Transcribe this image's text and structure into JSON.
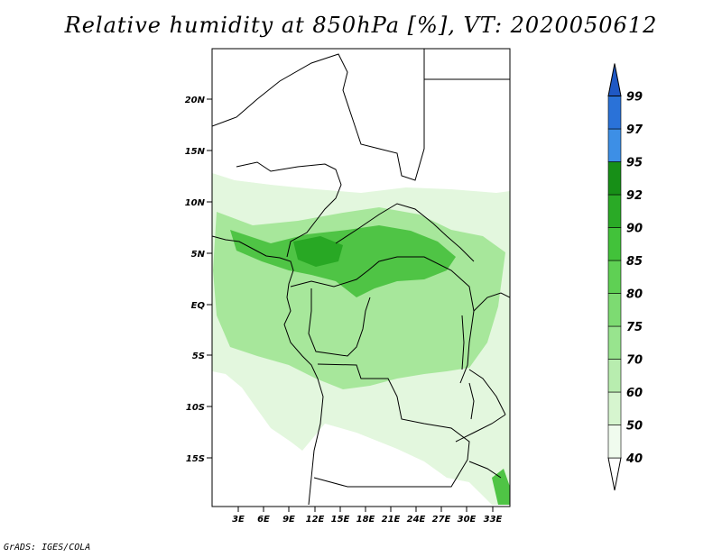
{
  "title": "Relative humidity at 850hPa [%], VT: 2020050612",
  "credit": "GrADS: IGES/COLA",
  "map": {
    "lat_labels": [
      "20N",
      "15N",
      "10N",
      "5N",
      "EQ",
      "5S",
      "10S",
      "15S"
    ],
    "lon_labels": [
      "3E",
      "6E",
      "9E",
      "12E",
      "15E",
      "18E",
      "21E",
      "24E",
      "27E",
      "30E",
      "33E"
    ]
  },
  "colorbar": {
    "levels": [
      "40",
      "50",
      "60",
      "70",
      "75",
      "80",
      "85",
      "90",
      "92",
      "95",
      "97",
      "99"
    ],
    "colors": [
      "#f0fbee",
      "#d6f5cf",
      "#b8edaf",
      "#98e48e",
      "#7ddb72",
      "#5fd054",
      "#42c23a",
      "#2aaa26",
      "#178f17",
      "#3d8fe6",
      "#2a72d8",
      "#1f58c4"
    ]
  },
  "colors": {
    "humid_low": "#e3f7de",
    "humid_mid": "#a7e79b",
    "humid_high": "#4fc445",
    "humid_peak": "#28a824",
    "border": "#000000"
  }
}
